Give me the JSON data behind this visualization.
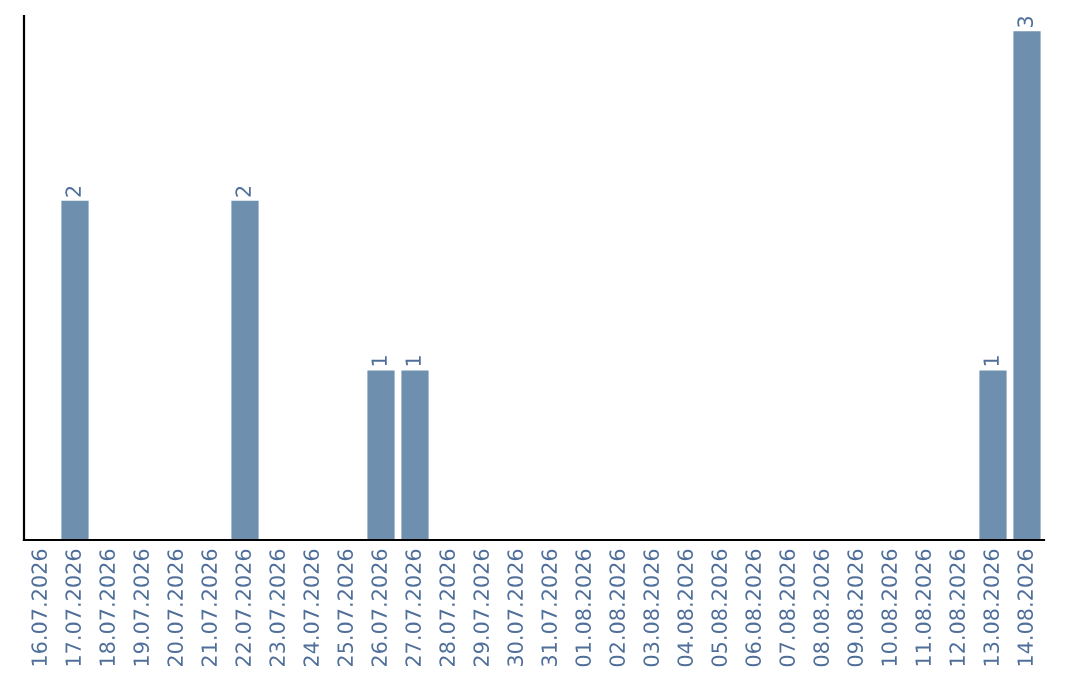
{
  "chart_data": {
    "type": "bar",
    "categories": [
      "16.07.2026",
      "17.07.2026",
      "18.07.2026",
      "19.07.2026",
      "20.07.2026",
      "21.07.2026",
      "22.07.2026",
      "23.07.2026",
      "24.07.2026",
      "25.07.2026",
      "26.07.2026",
      "27.07.2026",
      "28.07.2026",
      "29.07.2026",
      "30.07.2026",
      "31.07.2026",
      "01.08.2026",
      "02.08.2026",
      "03.08.2026",
      "04.08.2026",
      "05.08.2026",
      "06.08.2026",
      "07.08.2026",
      "08.08.2026",
      "09.08.2026",
      "10.08.2026",
      "11.08.2026",
      "12.08.2026",
      "13.08.2026",
      "14.08.2026"
    ],
    "values": [
      0,
      2,
      0,
      0,
      0,
      0,
      2,
      0,
      0,
      0,
      1,
      1,
      0,
      0,
      0,
      0,
      0,
      0,
      0,
      0,
      0,
      0,
      0,
      0,
      0,
      0,
      0,
      0,
      1,
      3
    ],
    "value_labels": [
      null,
      "2",
      null,
      null,
      null,
      null,
      "2",
      null,
      null,
      null,
      "1",
      "1",
      null,
      null,
      null,
      null,
      null,
      null,
      null,
      null,
      null,
      null,
      null,
      null,
      null,
      null,
      null,
      null,
      "1",
      "3"
    ],
    "color": "#6f8fae",
    "tick_labels": "x",
    "grid": false,
    "legend": false
  }
}
